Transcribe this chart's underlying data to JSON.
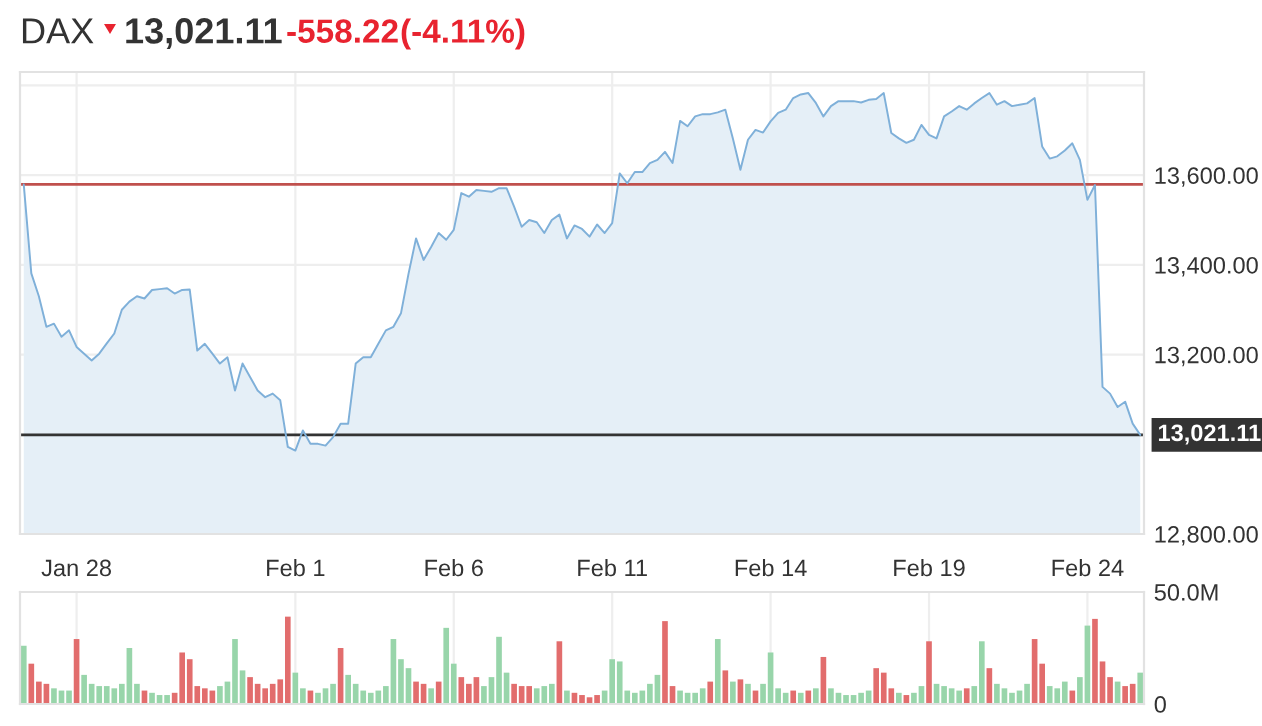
{
  "chart_data": [
    {
      "type": "area",
      "title": "DAX",
      "annotations": [
        "13,021.11",
        "-558.22",
        "(-4.11%)"
      ],
      "categories": [
        null,
        null,
        null,
        null,
        null,
        null,
        null,
        "Jan 28",
        null,
        null,
        null,
        null,
        null,
        null,
        null,
        null,
        null,
        null,
        null,
        null,
        null,
        null,
        null,
        null,
        null,
        null,
        null,
        null,
        null,
        null,
        null,
        null,
        null,
        null,
        null,
        null,
        "Feb 1",
        null,
        null,
        null,
        null,
        null,
        null,
        null,
        null,
        null,
        null,
        null,
        null,
        null,
        null,
        null,
        null,
        null,
        null,
        null,
        null,
        "Feb 6",
        null,
        null,
        null,
        null,
        null,
        null,
        null,
        null,
        null,
        null,
        null,
        null,
        null,
        null,
        null,
        null,
        null,
        null,
        null,
        null,
        "Feb 11",
        null,
        null,
        null,
        null,
        null,
        null,
        null,
        null,
        null,
        null,
        null,
        null,
        null,
        null,
        null,
        null,
        null,
        null,
        null,
        null,
        "Feb 14",
        null,
        null,
        null,
        null,
        null,
        null,
        null,
        null,
        null,
        null,
        null,
        null,
        null,
        null,
        null,
        null,
        null,
        null,
        null,
        null,
        "Feb 19",
        null,
        null,
        null,
        null,
        null,
        null,
        null,
        null,
        null,
        null,
        null,
        null,
        null,
        null,
        null,
        null,
        null,
        null,
        null,
        null,
        "Feb 24",
        null,
        null,
        null,
        null,
        null,
        null,
        null
      ],
      "series": [
        {
          "color": "#7fb0d9",
          "values": [
            13579,
            13381,
            13330,
            13262,
            13269,
            13240,
            13254,
            13217,
            13202,
            13187,
            13202,
            13225,
            13247,
            13300,
            13318,
            13330,
            13325,
            13344,
            13346,
            13348,
            13336,
            13344,
            13345,
            13209,
            13224,
            13202,
            13180,
            13194,
            13120,
            13180,
            13150,
            13120,
            13105,
            13113,
            13098,
            12994,
            12986,
            13031,
            13001,
            13001,
            12997,
            13016,
            13046,
            13046,
            13180,
            13194,
            13194,
            13224,
            13254,
            13262,
            13292,
            13380,
            13459,
            13411,
            13440,
            13471,
            13456,
            13478,
            13560,
            13552,
            13567,
            13565,
            13563,
            13571,
            13571,
            13530,
            13485,
            13500,
            13495,
            13471,
            13500,
            13512,
            13459,
            13488,
            13480,
            13463,
            13490,
            13471,
            13493,
            13604,
            13582,
            13607,
            13607,
            13627,
            13634,
            13652,
            13627,
            13721,
            13709,
            13731,
            13736,
            13736,
            13740,
            13746,
            13682,
            13612,
            13679,
            13701,
            13695,
            13720,
            13739,
            13746,
            13772,
            13780,
            13783,
            13761,
            13731,
            13754,
            13765,
            13765,
            13765,
            13762,
            13768,
            13770,
            13783,
            13694,
            13682,
            13672,
            13679,
            13712,
            13690,
            13682,
            13731,
            13742,
            13754,
            13746,
            13760,
            13772,
            13783,
            13757,
            13765,
            13754,
            13757,
            13760,
            13772,
            13664,
            13637,
            13642,
            13655,
            13671,
            13634,
            13545,
            13578,
            13128,
            13113,
            13083,
            13095,
            13046,
            13021
          ]
        }
      ],
      "ylim": [
        12800,
        13830
      ],
      "yticks": [
        {
          "value": 12800,
          "label": "12,800.00"
        },
        {
          "value": 13200,
          "label": "13,200.00"
        },
        {
          "value": 13400,
          "label": "13,400.00"
        },
        {
          "value": 13600,
          "label": "13,600.00"
        },
        {
          "value": 13800,
          "label": null
        }
      ],
      "ref_lines": [
        {
          "axis": "y",
          "value": 13579.33,
          "color": "#c0504d"
        },
        {
          "axis": "y",
          "value": 13021.11,
          "label": "13,021.11",
          "color": "#333333"
        }
      ],
      "grid": true
    },
    {
      "type": "bar",
      "categories": [
        null,
        null,
        null,
        null,
        null,
        null,
        null,
        null,
        null,
        null,
        null,
        null,
        null,
        null,
        null,
        null,
        null,
        null,
        null,
        null,
        null,
        null,
        null,
        null,
        null,
        null,
        null,
        null,
        null,
        null,
        null,
        null,
        null,
        null,
        null,
        null,
        null,
        null,
        null,
        null,
        null,
        null,
        null,
        null,
        null,
        null,
        null,
        null,
        null,
        null,
        null,
        null,
        null,
        null,
        null,
        null,
        null,
        null,
        null,
        null,
        null,
        null,
        null,
        null,
        null,
        null,
        null,
        null,
        null,
        null,
        null,
        null,
        null,
        null,
        null,
        null,
        null,
        null,
        null,
        null,
        null,
        null,
        null,
        null,
        null,
        null,
        null,
        null,
        null,
        null,
        null,
        null,
        null,
        null,
        null,
        null,
        null,
        null,
        null,
        null,
        null,
        null,
        null,
        null,
        null,
        null,
        null,
        null,
        null,
        null,
        null,
        null,
        null,
        null,
        null,
        null,
        null,
        null,
        null,
        null,
        null,
        null,
        null,
        null,
        null,
        null,
        null,
        null,
        null,
        null,
        null,
        null,
        null,
        null,
        null,
        null,
        null,
        null,
        null,
        null,
        null,
        null,
        null,
        null,
        null,
        null,
        null,
        null,
        null
      ],
      "values": [
        26,
        18,
        10,
        9,
        7,
        6,
        6,
        29,
        13,
        9,
        8,
        8,
        7,
        9,
        25,
        9,
        6,
        5,
        4,
        4,
        5,
        23,
        20,
        8,
        7,
        6,
        8,
        10,
        29,
        15,
        12,
        9,
        7,
        9,
        11,
        39,
        14,
        7,
        6,
        5,
        7,
        9,
        25,
        13,
        9,
        6,
        5,
        6,
        8,
        29,
        20,
        16,
        10,
        9,
        7,
        10,
        34,
        18,
        12,
        9,
        12,
        8,
        12,
        30,
        14,
        9,
        8,
        8,
        7,
        8,
        9,
        28,
        6,
        5,
        4,
        3,
        4,
        6,
        20,
        19,
        6,
        5,
        6,
        9,
        13,
        37,
        8,
        6,
        5,
        5,
        7,
        10,
        29,
        15,
        10,
        11,
        9,
        6,
        9,
        23,
        7,
        5,
        6,
        5,
        6,
        7,
        21,
        7,
        5,
        4,
        4,
        5,
        6,
        16,
        14,
        7,
        5,
        4,
        5,
        8,
        28,
        9,
        8,
        7,
        6,
        7,
        8,
        28,
        16,
        9,
        7,
        5,
        6,
        9,
        29,
        18,
        8,
        7,
        10,
        6,
        12,
        35,
        38,
        19,
        12,
        10,
        8,
        9,
        14
      ],
      "colors": [
        "#98d5aa",
        "#e26d6d",
        "#e26d6d",
        "#e26d6d",
        "#98d5aa",
        "#98d5aa",
        "#98d5aa",
        "#e26d6d",
        "#98d5aa",
        "#98d5aa",
        "#98d5aa",
        "#98d5aa",
        "#98d5aa",
        "#98d5aa",
        "#98d5aa",
        "#98d5aa",
        "#e26d6d",
        "#98d5aa",
        "#98d5aa",
        "#98d5aa",
        "#e26d6d",
        "#e26d6d",
        "#e26d6d",
        "#e26d6d",
        "#e26d6d",
        "#e26d6d",
        "#98d5aa",
        "#98d5aa",
        "#98d5aa",
        "#98d5aa",
        "#e26d6d",
        "#e26d6d",
        "#e26d6d",
        "#e26d6d",
        "#e26d6d",
        "#e26d6d",
        "#98d5aa",
        "#98d5aa",
        "#e26d6d",
        "#98d5aa",
        "#98d5aa",
        "#98d5aa",
        "#e26d6d",
        "#98d5aa",
        "#98d5aa",
        "#98d5aa",
        "#98d5aa",
        "#98d5aa",
        "#98d5aa",
        "#98d5aa",
        "#98d5aa",
        "#98d5aa",
        "#e26d6d",
        "#e26d6d",
        "#98d5aa",
        "#e26d6d",
        "#98d5aa",
        "#98d5aa",
        "#e26d6d",
        "#e26d6d",
        "#e26d6d",
        "#98d5aa",
        "#98d5aa",
        "#98d5aa",
        "#98d5aa",
        "#e26d6d",
        "#e26d6d",
        "#e26d6d",
        "#98d5aa",
        "#98d5aa",
        "#98d5aa",
        "#e26d6d",
        "#98d5aa",
        "#e26d6d",
        "#e26d6d",
        "#e26d6d",
        "#e26d6d",
        "#98d5aa",
        "#98d5aa",
        "#98d5aa",
        "#98d5aa",
        "#98d5aa",
        "#98d5aa",
        "#98d5aa",
        "#98d5aa",
        "#e26d6d",
        "#e26d6d",
        "#98d5aa",
        "#98d5aa",
        "#98d5aa",
        "#98d5aa",
        "#e26d6d",
        "#98d5aa",
        "#e26d6d",
        "#98d5aa",
        "#e26d6d",
        "#98d5aa",
        "#e26d6d",
        "#98d5aa",
        "#98d5aa",
        "#98d5aa",
        "#98d5aa",
        "#e26d6d",
        "#98d5aa",
        "#e26d6d",
        "#98d5aa",
        "#e26d6d",
        "#98d5aa",
        "#98d5aa",
        "#98d5aa",
        "#98d5aa",
        "#98d5aa",
        "#98d5aa",
        "#e26d6d",
        "#e26d6d",
        "#e26d6d",
        "#98d5aa",
        "#e26d6d",
        "#98d5aa",
        "#98d5aa",
        "#e26d6d",
        "#98d5aa",
        "#98d5aa",
        "#98d5aa",
        "#98d5aa",
        "#e26d6d",
        "#98d5aa",
        "#98d5aa",
        "#e26d6d",
        "#98d5aa",
        "#98d5aa",
        "#98d5aa",
        "#98d5aa",
        "#98d5aa",
        "#e26d6d",
        "#e26d6d",
        "#98d5aa",
        "#98d5aa",
        "#98d5aa",
        "#e26d6d",
        "#98d5aa",
        "#98d5aa",
        "#e26d6d",
        "#e26d6d",
        "#e26d6d",
        "#98d5aa",
        "#e26d6d",
        "#e26d6d",
        "#98d5aa"
      ],
      "ylim": [
        0,
        50
      ],
      "yticks": [
        0,
        {
          "value": 50,
          "label": "50.0M"
        }
      ],
      "tick_labels": "y",
      "grid": true
    }
  ]
}
